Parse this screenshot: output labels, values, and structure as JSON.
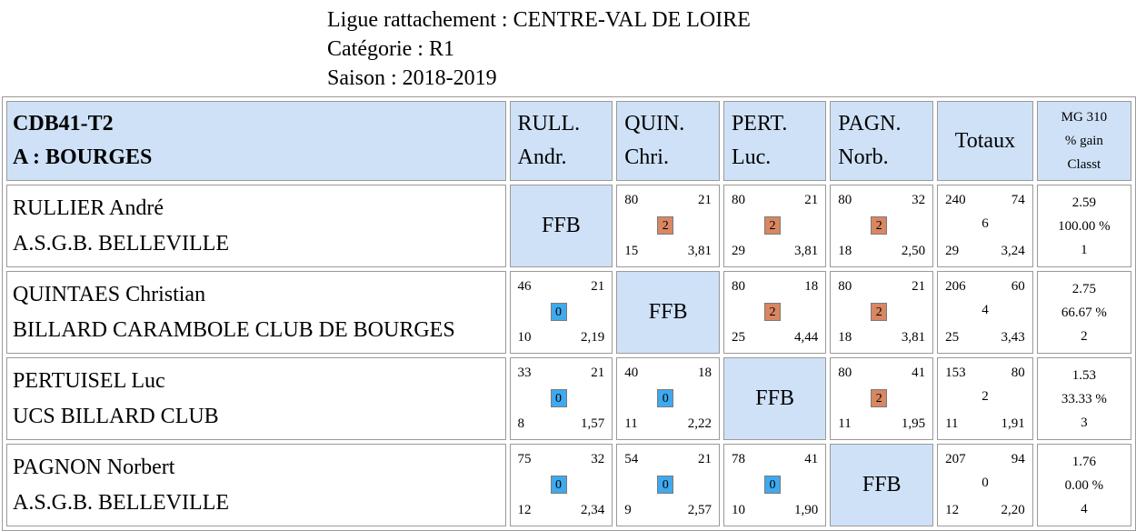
{
  "header": {
    "ligue": "Ligue rattachement : CENTRE-VAL DE LOIRE",
    "categorie": "Catégorie : R1",
    "saison": "Saison : 2018-2019"
  },
  "table": {
    "team_code": "CDB41-T2",
    "team_city": "A : BOURGES",
    "col_players": [
      {
        "l1": "RULL.",
        "l2": "Andr."
      },
      {
        "l1": "QUIN.",
        "l2": "Chri."
      },
      {
        "l1": "PERT.",
        "l2": "Luc."
      },
      {
        "l1": "PAGN.",
        "l2": "Norb."
      }
    ],
    "totaux_label": "Totaux",
    "mg_label": "MG 310",
    "gain_label": "% gain",
    "classt_label": "Classt",
    "ffb_label": "FFB",
    "rows": [
      {
        "name": "RULLIER André",
        "club": "A.S.G.B. BELLEVILLE",
        "cells": [
          null,
          {
            "pts": "80",
            "rep": "21",
            "match": "2",
            "serie": "15",
            "moy": "3,81"
          },
          {
            "pts": "80",
            "rep": "21",
            "match": "2",
            "serie": "29",
            "moy": "3,81"
          },
          {
            "pts": "80",
            "rep": "32",
            "match": "2",
            "serie": "18",
            "moy": "2,50"
          }
        ],
        "tot": {
          "pts": "240",
          "rep": "74",
          "match": "6",
          "serie": "29",
          "moy": "3,24"
        },
        "mg": "2.59",
        "gain": "100.00 %",
        "classt": "1"
      },
      {
        "name": "QUINTAES Christian",
        "club": "BILLARD CARAMBOLE CLUB DE BOURGES",
        "cells": [
          {
            "pts": "46",
            "rep": "21",
            "match": "0",
            "serie": "10",
            "moy": "2,19"
          },
          null,
          {
            "pts": "80",
            "rep": "18",
            "match": "2",
            "serie": "25",
            "moy": "4,44"
          },
          {
            "pts": "80",
            "rep": "21",
            "match": "2",
            "serie": "18",
            "moy": "3,81"
          }
        ],
        "tot": {
          "pts": "206",
          "rep": "60",
          "match": "4",
          "serie": "25",
          "moy": "3,43"
        },
        "mg": "2.75",
        "gain": "66.67 %",
        "classt": "2"
      },
      {
        "name": "PERTUISEL Luc",
        "club": "UCS BILLARD CLUB",
        "cells": [
          {
            "pts": "33",
            "rep": "21",
            "match": "0",
            "serie": "8",
            "moy": "1,57"
          },
          {
            "pts": "40",
            "rep": "18",
            "match": "0",
            "serie": "11",
            "moy": "2,22"
          },
          null,
          {
            "pts": "80",
            "rep": "41",
            "match": "2",
            "serie": "11",
            "moy": "1,95"
          }
        ],
        "tot": {
          "pts": "153",
          "rep": "80",
          "match": "2",
          "serie": "11",
          "moy": "1,91"
        },
        "mg": "1.53",
        "gain": "33.33 %",
        "classt": "3"
      },
      {
        "name": "PAGNON Norbert",
        "club": "A.S.G.B. BELLEVILLE",
        "cells": [
          {
            "pts": "75",
            "rep": "32",
            "match": "0",
            "serie": "12",
            "moy": "2,34"
          },
          {
            "pts": "54",
            "rep": "21",
            "match": "0",
            "serie": "9",
            "moy": "2,57"
          },
          {
            "pts": "78",
            "rep": "41",
            "match": "0",
            "serie": "10",
            "moy": "1,90"
          },
          null
        ],
        "tot": {
          "pts": "207",
          "rep": "94",
          "match": "0",
          "serie": "12",
          "moy": "2,20"
        },
        "mg": "1.76",
        "gain": "0.00 %",
        "classt": "4"
      }
    ]
  },
  "colors": {
    "win_badge": "#d98662",
    "loss_badge": "#3fa9ee",
    "header_bg": "#cfe1f7"
  }
}
